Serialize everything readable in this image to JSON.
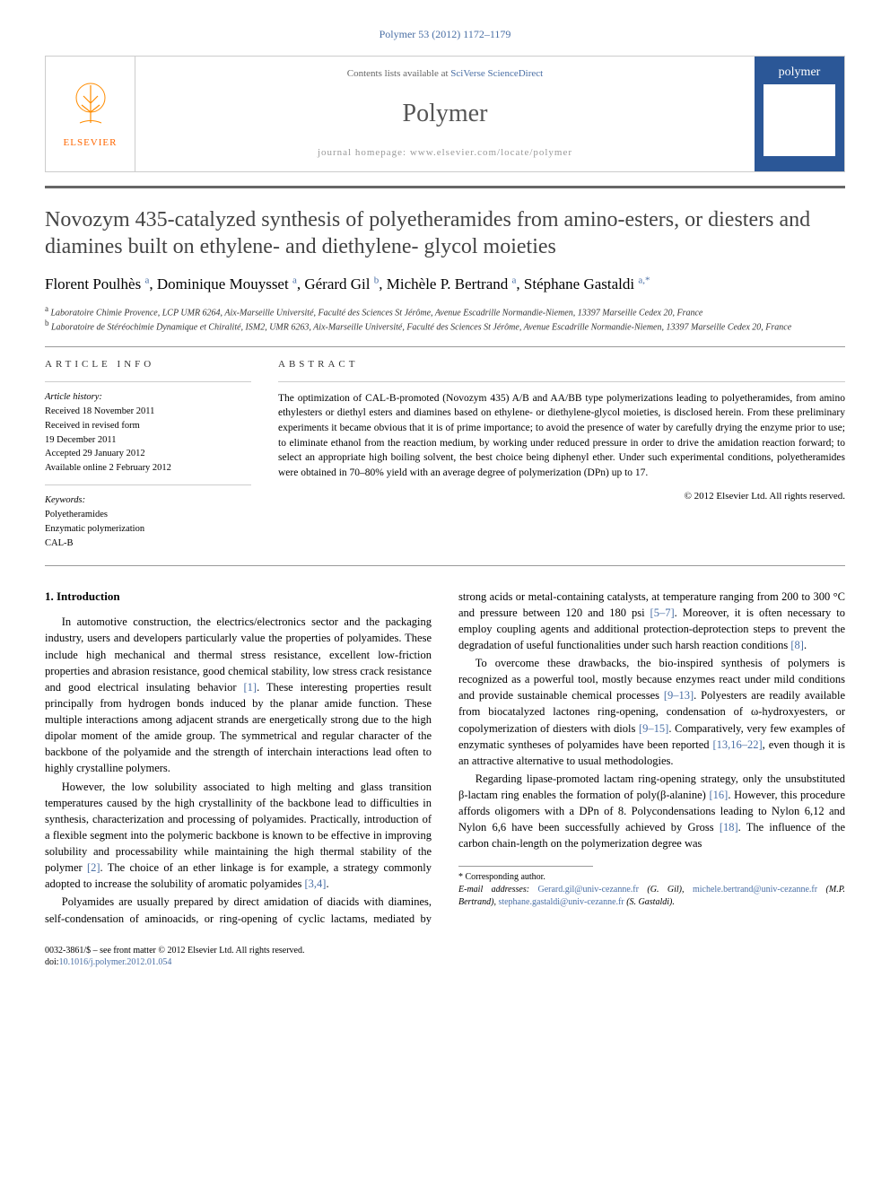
{
  "header_citation": "Polymer 53 (2012) 1172–1179",
  "contents_text": "Contents lists available at ",
  "contents_link": "SciVerse ScienceDirect",
  "journal_name": "Polymer",
  "homepage_text": "journal homepage: www.elsevier.com/locate/polymer",
  "elsevier_label": "ELSEVIER",
  "cover_label": "polymer",
  "article_title": "Novozym 435-catalyzed synthesis of polyetheramides from amino-esters, or diesters and diamines built on ethylene- and diethylene- glycol moieties",
  "authors_html": "Florent Poulhès <sup>a</sup>, Dominique Mouysset <sup>a</sup>, Gérard Gil <sup>b</sup>, Michèle P. Bertrand <sup>a</sup>, Stéphane Gastaldi <sup>a,*</sup>",
  "affiliations": [
    "a Laboratoire Chimie Provence, LCP UMR 6264, Aix-Marseille Université, Faculté des Sciences St Jérôme, Avenue Escadrille Normandie-Niemen, 13397 Marseille Cedex 20, France",
    "b Laboratoire de Stéréochimie Dynamique et Chiralité, ISM2, UMR 6263, Aix-Marseille Université, Faculté des Sciences St Jérôme, Avenue Escadrille Normandie-Niemen, 13397 Marseille Cedex 20, France"
  ],
  "info_heading": "ARTICLE INFO",
  "history_heading": "Article history:",
  "history": [
    "Received 18 November 2011",
    "Received in revised form",
    "19 December 2011",
    "Accepted 29 January 2012",
    "Available online 2 February 2012"
  ],
  "keywords_heading": "Keywords:",
  "keywords": [
    "Polyetheramides",
    "Enzymatic polymerization",
    "CAL-B"
  ],
  "abstract_heading": "ABSTRACT",
  "abstract_text": "The optimization of CAL-B-promoted (Novozym 435) A/B and AA/BB type polymerizations leading to polyetheramides, from amino ethylesters or diethyl esters and diamines based on ethylene- or diethylene-glycol moieties, is disclosed herein. From these preliminary experiments it became obvious that it is of prime importance; to avoid the presence of water by carefully drying the enzyme prior to use; to eliminate ethanol from the reaction medium, by working under reduced pressure in order to drive the amidation reaction forward; to select an appropriate high boiling solvent, the best choice being diphenyl ether. Under such experimental conditions, polyetheramides were obtained in 70–80% yield with an average degree of polymerization (DPn) up to 17.",
  "copyright_text": "© 2012 Elsevier Ltd. All rights reserved.",
  "section_heading": "1. Introduction",
  "paragraphs": [
    "In automotive construction, the electrics/electronics sector and the packaging industry, users and developers particularly value the properties of polyamides. These include high mechanical and thermal stress resistance, excellent low-friction properties and abrasion resistance, good chemical stability, low stress crack resistance and good electrical insulating behavior <span class='ref'>[1]</span>. These interesting properties result principally from hydrogen bonds induced by the planar amide function. These multiple interactions among adjacent strands are energetically strong due to the high dipolar moment of the amide group. The symmetrical and regular character of the backbone of the polyamide and the strength of interchain interactions lead often to highly crystalline polymers.",
    "However, the low solubility associated to high melting and glass transition temperatures caused by the high crystallinity of the backbone lead to difficulties in synthesis, characterization and processing of polyamides. Practically, introduction of a flexible segment into the polymeric backbone is known to be effective in improving solubility and processability while maintaining the high thermal stability of the polymer <span class='ref'>[2]</span>. The choice of an ether linkage is for example, a strategy commonly adopted to increase the solubility of aromatic polyamides <span class='ref'>[3,4]</span>.",
    "Polyamides are usually prepared by direct amidation of diacids with diamines, self-condensation of aminoacids, or ring-opening of cyclic lactams, mediated by strong acids or metal-containing catalysts, at temperature ranging from 200 to 300 °C and pressure between 120 and 180 psi <span class='ref'>[5–7]</span>. Moreover, it is often necessary to employ coupling agents and additional protection-deprotection steps to prevent the degradation of useful functionalities under such harsh reaction conditions <span class='ref'>[8]</span>.",
    "To overcome these drawbacks, the bio-inspired synthesis of polymers is recognized as a powerful tool, mostly because enzymes react under mild conditions and provide sustainable chemical processes <span class='ref'>[9–13]</span>. Polyesters are readily available from biocatalyzed lactones ring-opening, condensation of ω-hydroxyesters, or copolymerization of diesters with diols <span class='ref'>[9–15]</span>. Comparatively, very few examples of enzymatic syntheses of polyamides have been reported <span class='ref'>[13,16–22]</span>, even though it is an attractive alternative to usual methodologies.",
    "Regarding lipase-promoted lactam ring-opening strategy, only the unsubstituted β-lactam ring enables the formation of poly(β-alanine) <span class='ref'>[16]</span>. However, this procedure affords oligomers with a DPn of 8. Polycondensations leading to Nylon 6,12 and Nylon 6,6 have been successfully achieved by Gross <span class='ref'>[18]</span>. The influence of the carbon chain-length on the polymerization degree was"
  ],
  "corresponding_label": "* Corresponding author.",
  "email_label": "E-mail addresses: ",
  "emails": [
    {
      "addr": "Gerard.gil@univ-cezanne.fr",
      "name": "(G. Gil)"
    },
    {
      "addr": "michele.bertrand@univ-cezanne.fr",
      "name": "(M.P. Bertrand)"
    },
    {
      "addr": "stephane.gastaldi@univ-cezanne.fr",
      "name": "(S. Gastaldi)"
    }
  ],
  "doi_line1": "0032-3861/$ – see front matter © 2012 Elsevier Ltd. All rights reserved.",
  "doi_line2_prefix": "doi:",
  "doi_link": "10.1016/j.polymer.2012.01.054"
}
